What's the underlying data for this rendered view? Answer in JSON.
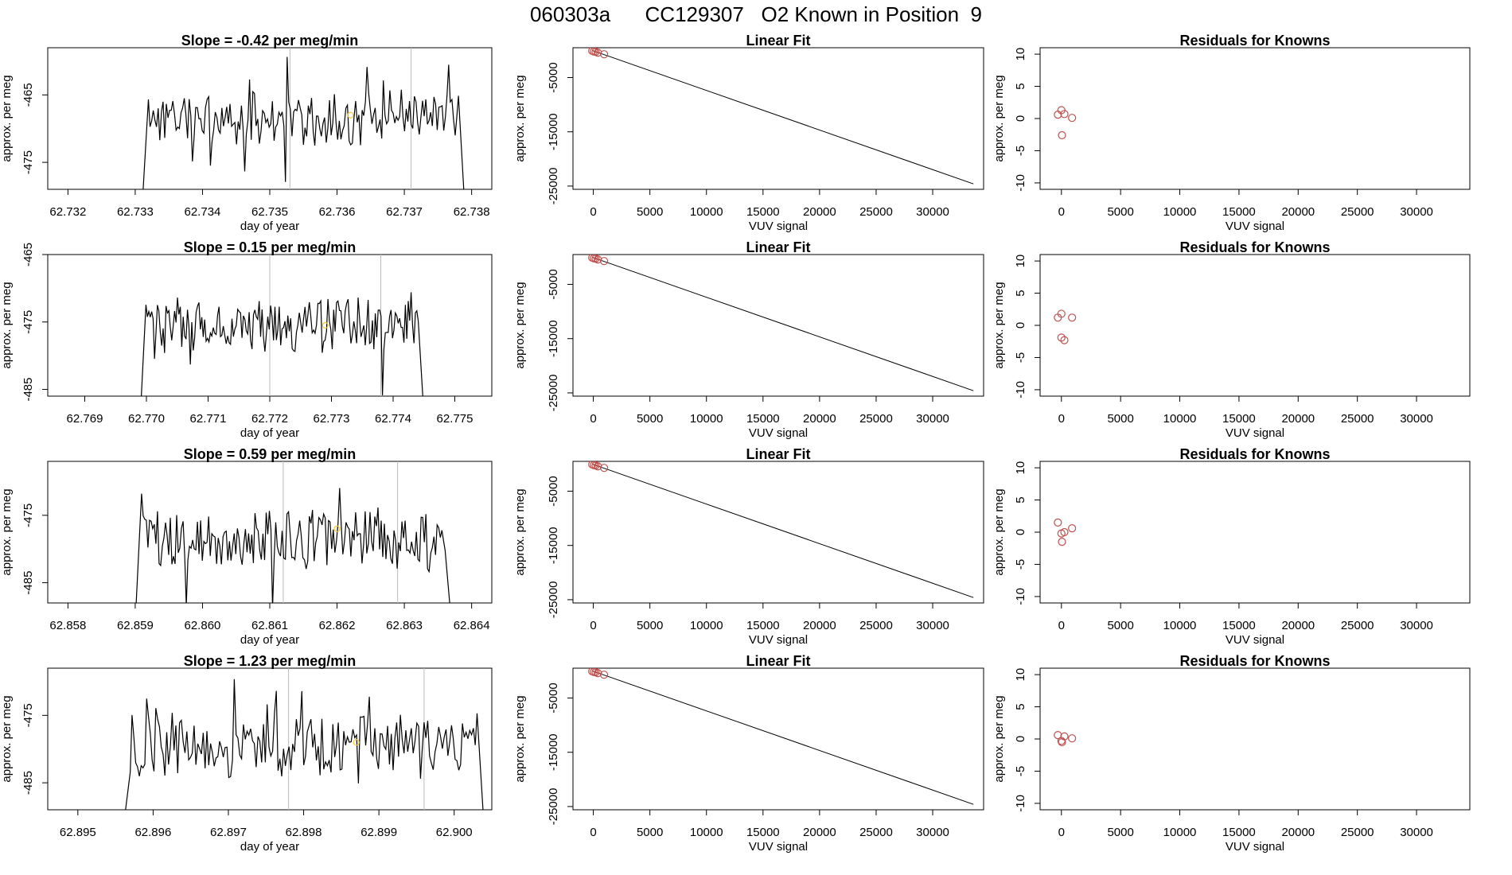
{
  "page": {
    "title": "060303a      CC129307   O2 Known in Position  9"
  },
  "colors": {
    "line": "#000000",
    "marker": "#c0504d",
    "highlight": "#f5c842",
    "vline": "#bbbbbb"
  },
  "chart_data": [
    {
      "type": "line",
      "panel": "time-series",
      "row": 1,
      "title": "Slope =  -0.42  per meg/min",
      "xlabel": "day of year",
      "ylabel": "approx. per meg",
      "xlim": [
        62.7317,
        62.7383
      ],
      "ylim": [
        -479,
        -458
      ],
      "xticks": [
        62.732,
        62.733,
        62.734,
        62.735,
        62.736,
        62.737,
        62.738
      ],
      "xtick_labels": [
        "62.732",
        "62.733",
        "62.734",
        "62.735",
        "62.736",
        "62.737",
        "62.738"
      ],
      "yticks": [
        -465,
        -475
      ],
      "ytick_labels": [
        "-465",
        "-475"
      ],
      "x_range": [
        62.7331,
        62.7379
      ],
      "y_mean": -468.5,
      "y_amp": 3.5,
      "seed": 11,
      "vlines": [
        62.7353,
        62.7371
      ],
      "highlight_point": {
        "x": 62.7362,
        "y": -468
      }
    },
    {
      "type": "scatter",
      "panel": "linear-fit",
      "row": 1,
      "title": "Linear Fit",
      "xlabel": "VUV signal",
      "ylabel": "approx. per meg",
      "xlim": [
        -1800,
        34500
      ],
      "ylim": [
        -25600,
        500
      ],
      "xticks": [
        0,
        5000,
        10000,
        15000,
        20000,
        25000,
        30000
      ],
      "xtick_labels": [
        "0",
        "5000",
        "10000",
        "15000",
        "20000",
        "25000",
        "30000"
      ],
      "yticks": [
        -5000,
        -15000,
        -25000
      ],
      "ytick_labels": [
        "-5000",
        "-15000",
        "-25000"
      ],
      "points": [
        {
          "x": -100,
          "y": -80
        },
        {
          "x": 50,
          "y": -200
        },
        {
          "x": 200,
          "y": -250
        },
        {
          "x": 400,
          "y": -420
        },
        {
          "x": 950,
          "y": -700
        }
      ],
      "fit_line": {
        "x": [
          -100,
          33600
        ],
        "y": [
          0,
          -24600
        ]
      }
    },
    {
      "type": "scatter",
      "panel": "residuals",
      "row": 1,
      "title": "Residuals for Knowns",
      "xlabel": "VUV signal",
      "ylabel": "approx. per meg",
      "xlim": [
        -1800,
        34500
      ],
      "ylim": [
        -11,
        11
      ],
      "xticks": [
        0,
        5000,
        10000,
        15000,
        20000,
        25000,
        30000
      ],
      "xtick_labels": [
        "0",
        "5000",
        "10000",
        "15000",
        "20000",
        "25000",
        "30000"
      ],
      "yticks": [
        10,
        5,
        0,
        -5,
        -10
      ],
      "ytick_labels": [
        "10",
        "5",
        "0",
        "-5",
        "-10"
      ],
      "points": [
        {
          "x": -300,
          "y": 0.6
        },
        {
          "x": 0,
          "y": 1.3
        },
        {
          "x": 250,
          "y": 0.7
        },
        {
          "x": 50,
          "y": -2.6
        },
        {
          "x": 900,
          "y": 0.1
        }
      ]
    },
    {
      "type": "line",
      "panel": "time-series",
      "row": 2,
      "title": "Slope =  0.15  per meg/min",
      "xlabel": "day of year",
      "ylabel": "approx. per meg",
      "xlim": [
        62.7684,
        62.7756
      ],
      "ylim": [
        -486,
        -465
      ],
      "xticks": [
        62.769,
        62.77,
        62.771,
        62.772,
        62.773,
        62.774,
        62.775
      ],
      "xtick_labels": [
        "62.769",
        "62.770",
        "62.771",
        "62.772",
        "62.773",
        "62.774",
        "62.775"
      ],
      "yticks": [
        -465,
        -475,
        -485
      ],
      "ytick_labels": [
        "-465",
        "-475",
        "-485"
      ],
      "x_range": [
        62.7699,
        62.7745
      ],
      "y_mean": -475.5,
      "y_amp": 3.5,
      "seed": 23,
      "vlines": [
        62.772,
        62.7738
      ],
      "highlight_point": {
        "x": 62.7729,
        "y": -475.5
      }
    },
    {
      "type": "scatter",
      "panel": "linear-fit",
      "row": 2,
      "title": "Linear Fit",
      "xlabel": "VUV signal",
      "ylabel": "approx. per meg",
      "xlim": [
        -1800,
        34500
      ],
      "ylim": [
        -25600,
        500
      ],
      "xticks": [
        0,
        5000,
        10000,
        15000,
        20000,
        25000,
        30000
      ],
      "xtick_labels": [
        "0",
        "5000",
        "10000",
        "15000",
        "20000",
        "25000",
        "30000"
      ],
      "yticks": [
        -5000,
        -15000,
        -25000
      ],
      "ytick_labels": [
        "-5000",
        "-15000",
        "-25000"
      ],
      "points": [
        {
          "x": -100,
          "y": -80
        },
        {
          "x": 50,
          "y": -200
        },
        {
          "x": 200,
          "y": -250
        },
        {
          "x": 400,
          "y": -420
        },
        {
          "x": 950,
          "y": -700
        }
      ],
      "fit_line": {
        "x": [
          -100,
          33600
        ],
        "y": [
          0,
          -24600
        ]
      }
    },
    {
      "type": "scatter",
      "panel": "residuals",
      "row": 2,
      "title": "Residuals for Knowns",
      "xlabel": "VUV signal",
      "ylabel": "approx. per meg",
      "xlim": [
        -1800,
        34500
      ],
      "ylim": [
        -11,
        11
      ],
      "xticks": [
        0,
        5000,
        10000,
        15000,
        20000,
        25000,
        30000
      ],
      "xtick_labels": [
        "0",
        "5000",
        "10000",
        "15000",
        "20000",
        "25000",
        "30000"
      ],
      "yticks": [
        10,
        5,
        0,
        -5,
        -10
      ],
      "ytick_labels": [
        "10",
        "5",
        "0",
        "-5",
        "-10"
      ],
      "points": [
        {
          "x": -300,
          "y": 1.2
        },
        {
          "x": 0,
          "y": 1.8
        },
        {
          "x": 0,
          "y": -1.9
        },
        {
          "x": 250,
          "y": -2.3
        },
        {
          "x": 900,
          "y": 1.2
        }
      ]
    },
    {
      "type": "line",
      "panel": "time-series",
      "row": 3,
      "title": "Slope =  0.59  per meg/min",
      "xlabel": "day of year",
      "ylabel": "approx. per meg",
      "xlim": [
        62.8577,
        62.8643
      ],
      "ylim": [
        -488,
        -467
      ],
      "xticks": [
        62.858,
        62.859,
        62.86,
        62.861,
        62.862,
        62.863,
        62.864
      ],
      "xtick_labels": [
        "62.858",
        "62.859",
        "62.860",
        "62.861",
        "62.862",
        "62.863",
        "62.864"
      ],
      "yticks": [
        -475,
        -485
      ],
      "ytick_labels": [
        "-475",
        "-485"
      ],
      "x_range": [
        62.859,
        62.8637
      ],
      "y_mean": -478.5,
      "y_amp": 4,
      "seed": 37,
      "vlines": [
        62.8612,
        62.8629
      ],
      "highlight_point": {
        "x": 62.862,
        "y": -477
      }
    },
    {
      "type": "scatter",
      "panel": "linear-fit",
      "row": 3,
      "title": "Linear Fit",
      "xlabel": "VUV signal",
      "ylabel": "approx. per meg",
      "xlim": [
        -1800,
        34500
      ],
      "ylim": [
        -25600,
        500
      ],
      "xticks": [
        0,
        5000,
        10000,
        15000,
        20000,
        25000,
        30000
      ],
      "xtick_labels": [
        "0",
        "5000",
        "10000",
        "15000",
        "20000",
        "25000",
        "30000"
      ],
      "yticks": [
        -5000,
        -15000,
        -25000
      ],
      "ytick_labels": [
        "-5000",
        "-15000",
        "-25000"
      ],
      "points": [
        {
          "x": -100,
          "y": -80
        },
        {
          "x": 50,
          "y": -200
        },
        {
          "x": 200,
          "y": -250
        },
        {
          "x": 400,
          "y": -420
        },
        {
          "x": 950,
          "y": -700
        }
      ],
      "fit_line": {
        "x": [
          -100,
          33600
        ],
        "y": [
          0,
          -24600
        ]
      }
    },
    {
      "type": "scatter",
      "panel": "residuals",
      "row": 3,
      "title": "Residuals for Knowns",
      "xlabel": "VUV signal",
      "ylabel": "approx. per meg",
      "xlim": [
        -1800,
        34500
      ],
      "ylim": [
        -11,
        11
      ],
      "xticks": [
        0,
        5000,
        10000,
        15000,
        20000,
        25000,
        30000
      ],
      "xtick_labels": [
        "0",
        "5000",
        "10000",
        "15000",
        "20000",
        "25000",
        "30000"
      ],
      "yticks": [
        10,
        5,
        0,
        -5,
        -10
      ],
      "ytick_labels": [
        "10",
        "5",
        "0",
        "-5",
        "-10"
      ],
      "points": [
        {
          "x": -300,
          "y": 1.5
        },
        {
          "x": 0,
          "y": -0.2
        },
        {
          "x": 250,
          "y": 0.0
        },
        {
          "x": 50,
          "y": -1.5
        },
        {
          "x": 900,
          "y": 0.6
        }
      ]
    },
    {
      "type": "line",
      "panel": "time-series",
      "row": 4,
      "title": "Slope =  1.23  per meg/min",
      "xlabel": "day of year",
      "ylabel": "approx. per meg",
      "xlim": [
        62.8946,
        62.9005
      ],
      "ylim": [
        -489,
        -468
      ],
      "xticks": [
        62.895,
        62.896,
        62.897,
        62.898,
        62.899,
        62.9
      ],
      "xtick_labels": [
        "62.895",
        "62.896",
        "62.897",
        "62.898",
        "62.899",
        "62.900"
      ],
      "yticks": [
        -475,
        -485
      ],
      "ytick_labels": [
        "-475",
        "-485"
      ],
      "x_range": [
        62.8956,
        62.9004
      ],
      "y_mean": -479.5,
      "y_amp": 4,
      "seed": 53,
      "vlines": [
        62.8978,
        62.8996
      ],
      "highlight_point": {
        "x": 62.8987,
        "y": -479
      }
    },
    {
      "type": "scatter",
      "panel": "linear-fit",
      "row": 4,
      "title": "Linear Fit",
      "xlabel": "VUV signal",
      "ylabel": "approx. per meg",
      "xlim": [
        -1800,
        34500
      ],
      "ylim": [
        -25600,
        500
      ],
      "xticks": [
        0,
        5000,
        10000,
        15000,
        20000,
        25000,
        30000
      ],
      "xtick_labels": [
        "0",
        "5000",
        "10000",
        "15000",
        "20000",
        "25000",
        "30000"
      ],
      "yticks": [
        -5000,
        -15000,
        -25000
      ],
      "ytick_labels": [
        "-5000",
        "-15000",
        "-25000"
      ],
      "points": [
        {
          "x": -100,
          "y": -80
        },
        {
          "x": 50,
          "y": -200
        },
        {
          "x": 200,
          "y": -250
        },
        {
          "x": 400,
          "y": -420
        },
        {
          "x": 950,
          "y": -700
        }
      ],
      "fit_line": {
        "x": [
          -100,
          33600
        ],
        "y": [
          0,
          -24600
        ]
      }
    },
    {
      "type": "scatter",
      "panel": "residuals",
      "row": 4,
      "title": "Residuals for Knowns",
      "xlabel": "VUV signal",
      "ylabel": "approx. per meg",
      "xlim": [
        -1800,
        34500
      ],
      "ylim": [
        -11,
        11
      ],
      "xticks": [
        0,
        5000,
        10000,
        15000,
        20000,
        25000,
        30000
      ],
      "xtick_labels": [
        "0",
        "5000",
        "10000",
        "15000",
        "20000",
        "25000",
        "30000"
      ],
      "yticks": [
        10,
        5,
        0,
        -5,
        -10
      ],
      "ytick_labels": [
        "10",
        "5",
        "0",
        "-5",
        "-10"
      ],
      "points": [
        {
          "x": -300,
          "y": 0.6
        },
        {
          "x": 0,
          "y": -0.3
        },
        {
          "x": 250,
          "y": 0.4
        },
        {
          "x": 50,
          "y": -0.5
        },
        {
          "x": 900,
          "y": 0.1
        }
      ]
    }
  ]
}
